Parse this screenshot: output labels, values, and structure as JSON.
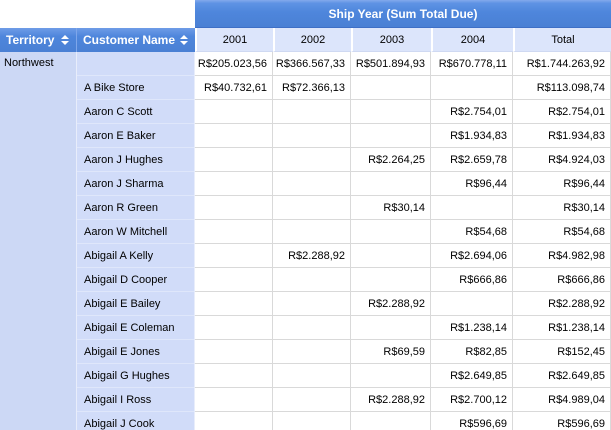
{
  "banner": {
    "title": "Ship Year (Sum Total Due)"
  },
  "headers": {
    "territory": "Territory",
    "customer": "Customer Name"
  },
  "year_columns": [
    "2001",
    "2002",
    "2003",
    "2004",
    "Total"
  ],
  "territory_group": {
    "label": "Northwest"
  },
  "icons": {
    "territory_sort": "sort-up-down-icon",
    "customer_sort": "sort-up-down-icon"
  },
  "colors": {
    "header_blue": "#4E86DC",
    "banner_blue": "#4E86DC",
    "year_header_bg": "#DCE5FB",
    "territory_col_bg": "#CCD8F5",
    "customer_col_bg": "#D1DCF9",
    "grid_line": "#D9D9D9",
    "header_text": "#FFFFFF"
  },
  "rows": [
    {
      "customer": "",
      "values": [
        "R$205.023,56",
        "R$366.567,33",
        "R$501.894,93",
        "R$670.778,11",
        "R$1.744.263,92"
      ]
    },
    {
      "customer": "A Bike Store",
      "values": [
        "R$40.732,61",
        "R$72.366,13",
        "",
        "",
        "R$113.098,74"
      ]
    },
    {
      "customer": "Aaron C Scott",
      "values": [
        "",
        "",
        "",
        "R$2.754,01",
        "R$2.754,01"
      ]
    },
    {
      "customer": "Aaron E Baker",
      "values": [
        "",
        "",
        "",
        "R$1.934,83",
        "R$1.934,83"
      ]
    },
    {
      "customer": "Aaron J Hughes",
      "values": [
        "",
        "",
        "R$2.264,25",
        "R$2.659,78",
        "R$4.924,03"
      ]
    },
    {
      "customer": "Aaron J Sharma",
      "values": [
        "",
        "",
        "",
        "R$96,44",
        "R$96,44"
      ]
    },
    {
      "customer": "Aaron R Green",
      "values": [
        "",
        "",
        "R$30,14",
        "",
        "R$30,14"
      ]
    },
    {
      "customer": "Aaron W Mitchell",
      "values": [
        "",
        "",
        "",
        "R$54,68",
        "R$54,68"
      ]
    },
    {
      "customer": "Abigail A Kelly",
      "values": [
        "",
        "R$2.288,92",
        "",
        "R$2.694,06",
        "R$4.982,98"
      ]
    },
    {
      "customer": "Abigail D Cooper",
      "values": [
        "",
        "",
        "",
        "R$666,86",
        "R$666,86"
      ]
    },
    {
      "customer": "Abigail E Bailey",
      "values": [
        "",
        "",
        "R$2.288,92",
        "",
        "R$2.288,92"
      ]
    },
    {
      "customer": "Abigail E Coleman",
      "values": [
        "",
        "",
        "",
        "R$1.238,14",
        "R$1.238,14"
      ]
    },
    {
      "customer": "Abigail E Jones",
      "values": [
        "",
        "",
        "R$69,59",
        "R$82,85",
        "R$152,45"
      ]
    },
    {
      "customer": "Abigail G Hughes",
      "values": [
        "",
        "",
        "",
        "R$2.649,85",
        "R$2.649,85"
      ]
    },
    {
      "customer": "Abigail I Ross",
      "values": [
        "",
        "",
        "R$2.288,92",
        "R$2.700,12",
        "R$4.989,04"
      ]
    },
    {
      "customer": "Abigail J Cook",
      "values": [
        "",
        "",
        "",
        "R$596,69",
        "R$596,69"
      ]
    }
  ]
}
